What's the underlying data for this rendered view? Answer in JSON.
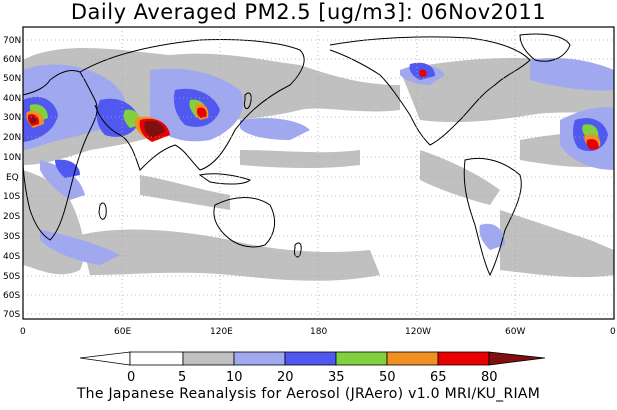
{
  "title": "Daily Averaged PM2.5 [ug/m3]: 06Nov2011",
  "footer": "The Japanese Reanalysis for Aerosol (JRAero) v1.0 MRI/KU_RIAM",
  "map": {
    "lat_labels": [
      "70N",
      "60N",
      "50N",
      "40N",
      "30N",
      "20N",
      "10N",
      "EQ",
      "10S",
      "20S",
      "30S",
      "40S",
      "50S",
      "60S",
      "70S"
    ],
    "lon_labels": [
      "0",
      "60E",
      "120E",
      "180",
      "120W",
      "60W",
      "0"
    ],
    "lat_range": [
      -75,
      75
    ],
    "lon_range": [
      0,
      360
    ],
    "grid": true,
    "colors": {
      "ocean": "#ffffff",
      "land_outline": "#000000",
      "grid": "#a8a8a8"
    }
  },
  "colorbar": {
    "levels": [
      "0",
      "5",
      "10",
      "20",
      "35",
      "50",
      "65",
      "80"
    ],
    "colors": [
      "#ffffff",
      "#c0c0c0",
      "#a0a8f0",
      "#5058f0",
      "#80d040",
      "#f09020",
      "#e80000",
      "#801010"
    ]
  }
}
